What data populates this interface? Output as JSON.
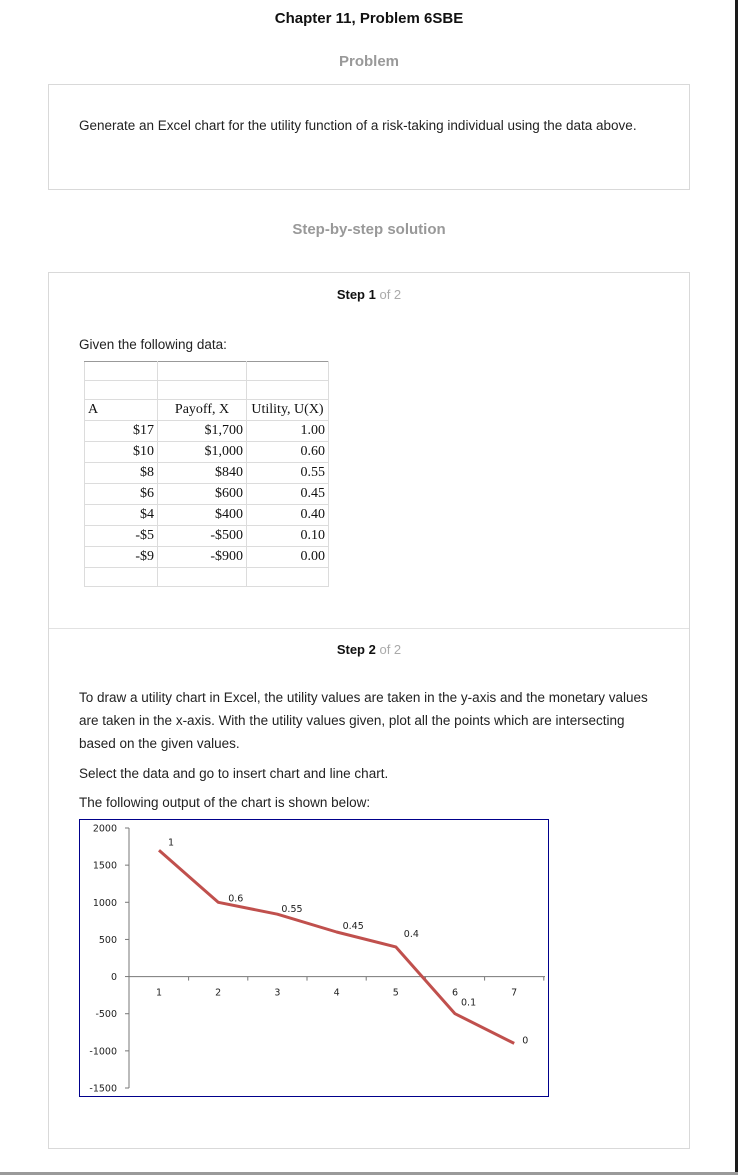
{
  "page": {
    "title": "Chapter 11, Problem 6SBE",
    "problem_heading": "Problem",
    "problem_text": "Generate an Excel chart for the utility function of a risk-taking individual using the data above.",
    "solution_heading": "Step-by-step solution"
  },
  "step1": {
    "label_bold": "Step 1",
    "label_of": "of 2",
    "given_text": "Given the following data:",
    "table": {
      "headers": [
        "A",
        "Payoff, X",
        "Utility, U(X)"
      ],
      "rows": [
        [
          "$17",
          "$1,700",
          "1.00"
        ],
        [
          "$10",
          "$1,000",
          "0.60"
        ],
        [
          "$8",
          "$840",
          "0.55"
        ],
        [
          "$6",
          "$600",
          "0.45"
        ],
        [
          "$4",
          "$400",
          "0.40"
        ],
        [
          "-$5",
          "-$500",
          "0.10"
        ],
        [
          "-$9",
          "-$900",
          "0.00"
        ]
      ]
    }
  },
  "step2": {
    "label_bold": "Step 2",
    "label_of": "of 2",
    "paragraph1": "To draw a utility chart in Excel, the utility values are taken in the y-axis and the monetary values are taken in the x-axis. With the utility values given, plot all the points which are intersecting based on the given values.",
    "paragraph2": "Select the data and go to insert chart and line chart.",
    "paragraph3": "The following output of the chart is shown below:"
  },
  "chart_data": {
    "type": "line",
    "x": [
      1,
      2,
      3,
      4,
      5,
      6,
      7
    ],
    "series": [
      {
        "values": [
          1700,
          1000,
          840,
          600,
          400,
          -500,
          -900
        ],
        "data_labels": [
          "1",
          "0.6",
          "0.55",
          "0.45",
          "0.4",
          "0.1",
          "0"
        ],
        "color": "#c0504d"
      }
    ],
    "y_ticks": [
      2000,
      1500,
      1000,
      500,
      0,
      -500,
      -1000,
      -1500
    ],
    "x_ticks": [
      "1",
      "2",
      "3",
      "4",
      "5",
      "6",
      "7"
    ],
    "ylim": [
      -1500,
      2000
    ],
    "border_color": "#00008b"
  }
}
